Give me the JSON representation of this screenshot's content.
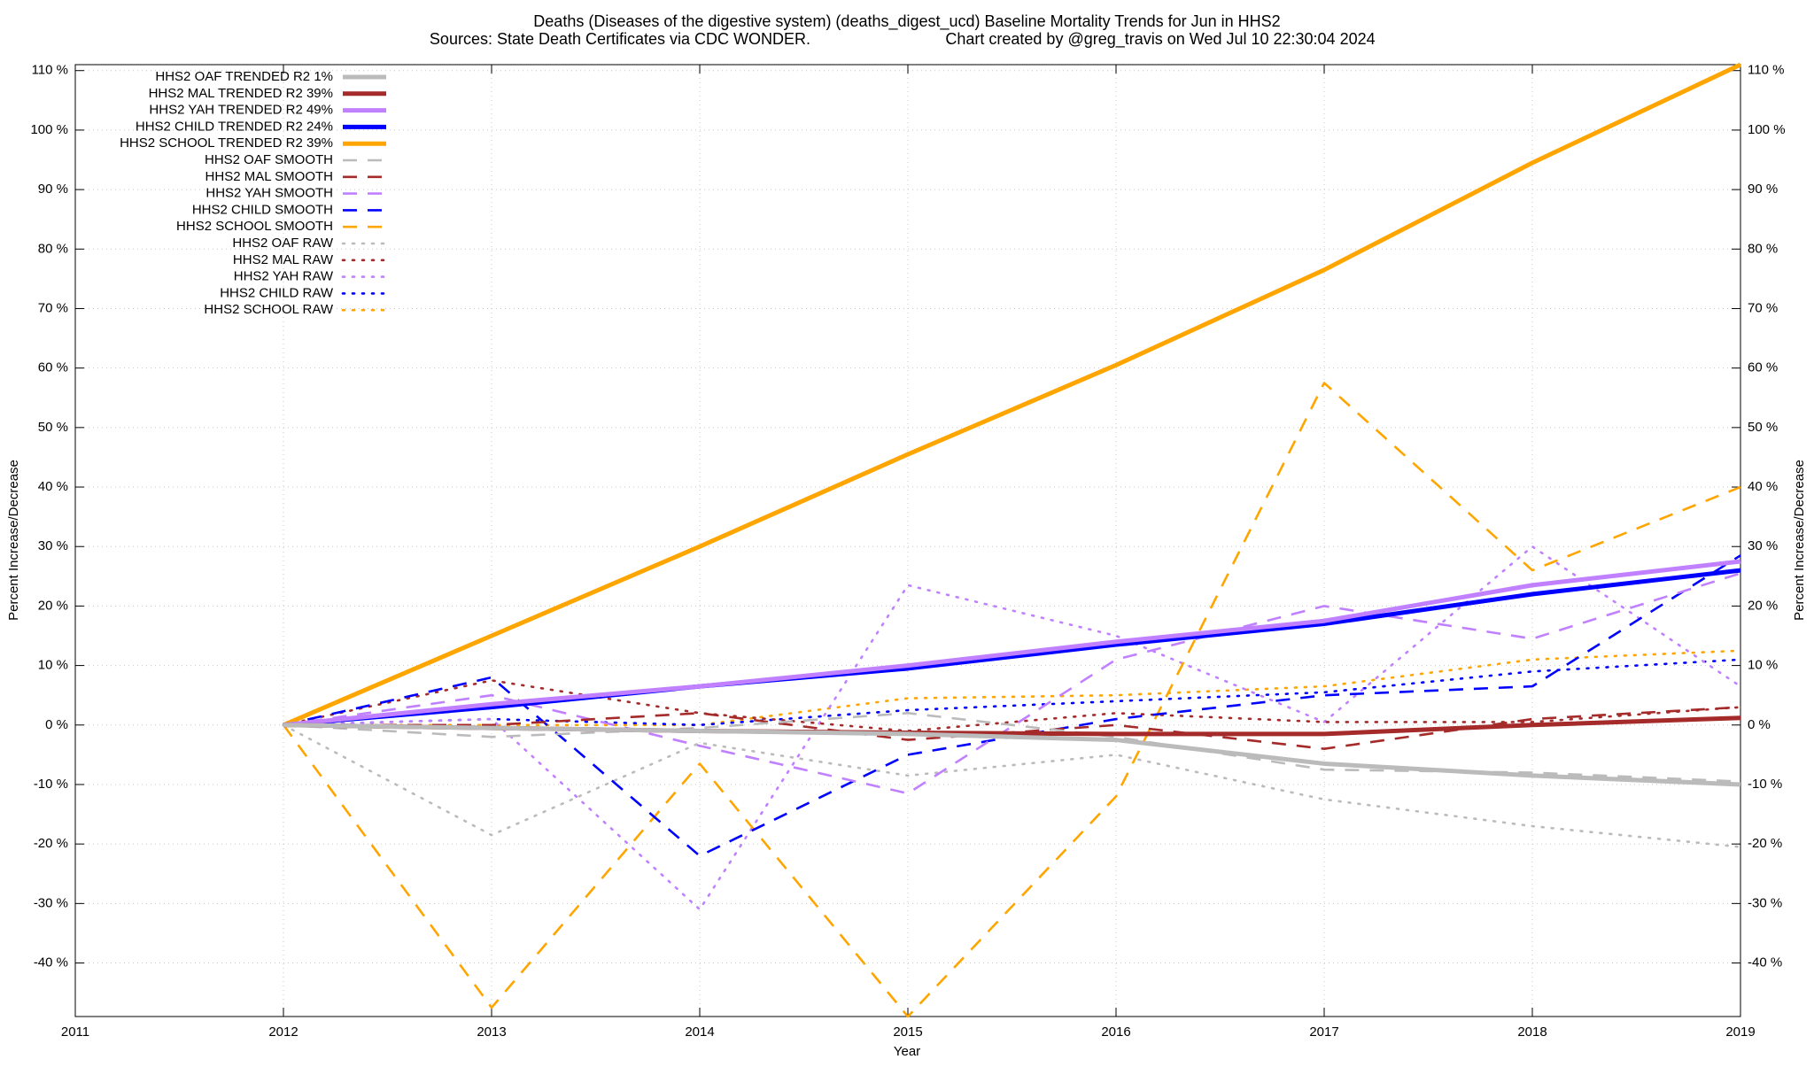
{
  "chart_data": {
    "type": "line",
    "title": "Deaths (Diseases of the digestive system) (deaths_digest_ucd)  Baseline Mortality Trends for Jun in HHS2",
    "subtitle": "Sources: State Death Certificates via CDC WONDER.",
    "credit": "Chart created by @greg_travis on Wed Jul 10 22:30:04 2024",
    "x_label": "Year",
    "y_label": "Percent Increase/Decrease",
    "x": [
      2012,
      2013,
      2014,
      2015,
      2016,
      2017,
      2018,
      2019
    ],
    "xlim": [
      2011,
      2019
    ],
    "xticks": [
      2011,
      2012,
      2013,
      2014,
      2015,
      2016,
      2017,
      2018,
      2019
    ],
    "ylim": [
      -49,
      111
    ],
    "yticks": [
      {
        "value": -40,
        "label": "-40 %"
      },
      {
        "value": -30,
        "label": "-30 %"
      },
      {
        "value": -20,
        "label": "-20 %"
      },
      {
        "value": -10,
        "label": "-10 %"
      },
      {
        "value": 0,
        "label": "0 %"
      },
      {
        "value": 10,
        "label": "10 %"
      },
      {
        "value": 20,
        "label": "20 %"
      },
      {
        "value": 30,
        "label": "30 %"
      },
      {
        "value": 40,
        "label": "40 %"
      },
      {
        "value": 50,
        "label": "50 %"
      },
      {
        "value": 60,
        "label": "60 %"
      },
      {
        "value": 70,
        "label": "70 %"
      },
      {
        "value": 80,
        "label": "80 %"
      },
      {
        "value": 90,
        "label": "90 %"
      },
      {
        "value": 100,
        "label": "100 %"
      },
      {
        "value": 110,
        "label": "110 %"
      }
    ],
    "grid": true,
    "legend": "top-left",
    "series": [
      {
        "name": "HHS2 OAF TRENDED R2  1%",
        "color": "#bbbbbb",
        "style": "solid",
        "values": [
          0,
          -0.5,
          -1,
          -1.5,
          -2.5,
          -6.5,
          -8.5,
          -10
        ]
      },
      {
        "name": "HHS2 MAL TRENDED R2  39%",
        "color": "#a52a2a",
        "style": "solid",
        "values": [
          0,
          -0.5,
          -1,
          -1.3,
          -1.5,
          -1.5,
          0,
          1.2
        ]
      },
      {
        "name": "HHS2 YAH TRENDED R2  49%",
        "color": "#c080ff",
        "style": "solid",
        "values": [
          0,
          3.5,
          6.5,
          10,
          14,
          17.5,
          23.5,
          27.5
        ]
      },
      {
        "name": "HHS2 CHILD TRENDED R2  24%",
        "color": "#0000ff",
        "style": "solid",
        "values": [
          0,
          3,
          6.5,
          9.5,
          13.5,
          17,
          22,
          26
        ]
      },
      {
        "name": "HHS2 SCHOOL TRENDED R2  39%",
        "color": "#ffa500",
        "style": "solid",
        "values": [
          0,
          15,
          30,
          45.5,
          60.5,
          76.5,
          94.5,
          111
        ]
      },
      {
        "name": "HHS2 OAF SMOOTH",
        "color": "#bbbbbb",
        "style": "dashed",
        "values": [
          0,
          -2,
          -0.5,
          2,
          -2,
          -7.5,
          -8,
          -9.5
        ]
      },
      {
        "name": "HHS2 MAL SMOOTH",
        "color": "#a52a2a",
        "style": "dashed",
        "values": [
          0,
          0,
          2,
          -2.5,
          0,
          -4,
          1,
          3
        ]
      },
      {
        "name": "HHS2 YAH SMOOTH",
        "color": "#c080ff",
        "style": "dashed",
        "values": [
          0,
          5,
          -3.5,
          -11.5,
          11,
          20,
          14.5,
          25.5
        ]
      },
      {
        "name": "HHS2 CHILD SMOOTH",
        "color": "#0000ff",
        "style": "dashed",
        "values": [
          0,
          8,
          -22,
          -5,
          1,
          5,
          6.5,
          28.5
        ]
      },
      {
        "name": "HHS2 SCHOOL SMOOTH",
        "color": "#ffa500",
        "style": "dashed",
        "values": [
          0,
          -47.5,
          -6.5,
          -49,
          -12,
          57.5,
          26,
          40
        ]
      },
      {
        "name": "HHS2 OAF RAW",
        "color": "#bbbbbb",
        "style": "dotted",
        "values": [
          0,
          -18.5,
          -3,
          -8.5,
          -5,
          -12.5,
          -17,
          -20.5
        ]
      },
      {
        "name": "HHS2 MAL RAW",
        "color": "#a52a2a",
        "style": "dotted",
        "values": [
          0,
          7.5,
          2,
          -1,
          2,
          0.5,
          0.5,
          3
        ]
      },
      {
        "name": "HHS2 YAH RAW",
        "color": "#c080ff",
        "style": "dotted",
        "values": [
          0,
          1,
          -31,
          23.5,
          15,
          0.5,
          30,
          6.5
        ]
      },
      {
        "name": "HHS2 CHILD RAW",
        "color": "#0000ff",
        "style": "dotted",
        "values": [
          0,
          1,
          0,
          2.5,
          4,
          5.5,
          9,
          11
        ]
      },
      {
        "name": "HHS2 SCHOOL RAW",
        "color": "#ffa500",
        "style": "dotted",
        "values": [
          0,
          0,
          0,
          4.5,
          5,
          6.5,
          11,
          12.5
        ]
      }
    ]
  }
}
